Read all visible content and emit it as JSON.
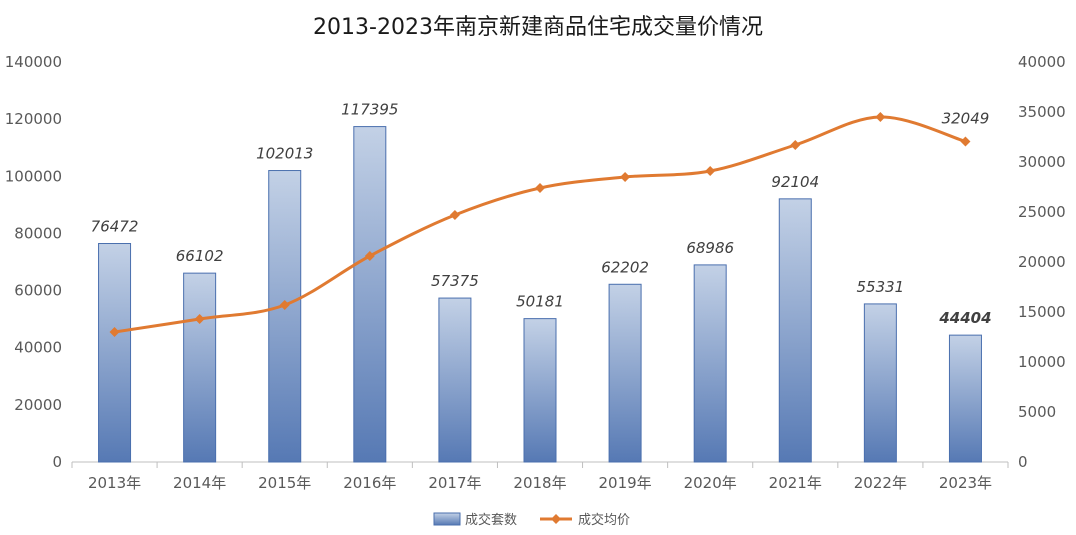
{
  "chart_data": {
    "type": "bar+line",
    "title": "2013-2023年南京新建商品住宅成交量价情况",
    "categories": [
      "2013年",
      "2014年",
      "2015年",
      "2016年",
      "2017年",
      "2018年",
      "2019年",
      "2020年",
      "2021年",
      "2022年",
      "2023年"
    ],
    "series": [
      {
        "name": "成交套数",
        "type": "bar",
        "axis": "left",
        "values": [
          76472,
          66102,
          102013,
          117395,
          57375,
          50181,
          62202,
          68986,
          92104,
          55331,
          44404
        ],
        "labels": [
          "76472",
          "66102",
          "102013",
          "117395",
          "57375",
          "50181",
          "62202",
          "68986",
          "92104",
          "55331",
          "44404"
        ]
      },
      {
        "name": "成交均价",
        "type": "line",
        "axis": "right",
        "values": [
          13000,
          14300,
          15700,
          20600,
          24700,
          27400,
          28500,
          29100,
          31700,
          34500,
          32049
        ],
        "labels": [
          "",
          "",
          "",
          "",
          "",
          "",
          "",
          "",
          "",
          "",
          "32049"
        ]
      }
    ],
    "y_left": {
      "min": 0,
      "max": 140000,
      "ticks": [
        "0",
        "20000",
        "40000",
        "60000",
        "80000",
        "100000",
        "120000",
        "140000"
      ]
    },
    "y_right": {
      "min": 0,
      "max": 40000,
      "ticks": [
        "0",
        "5000",
        "10000",
        "15000",
        "20000",
        "25000",
        "30000",
        "35000",
        "40000"
      ]
    },
    "grid": false,
    "legend_position": "bottom",
    "colors": {
      "bar_top": "#c3d1e6",
      "bar_bottom": "#5679b4",
      "bar_edge": "#4a6fae",
      "line": "#e07a31"
    }
  }
}
